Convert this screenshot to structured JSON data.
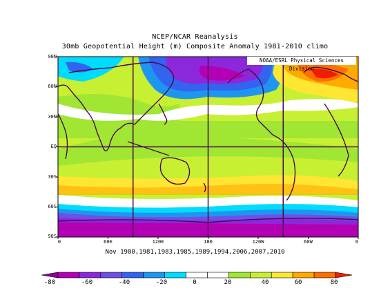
{
  "title_line1": "NCEP/NCAR Reanalysis",
  "title_line2": "30mb Geopotential Height (m) Composite Anomaly 1981-2010 climo",
  "credit": "NOAA/ESRL Physical Sciences Division",
  "subtitle": "Nov 1980,1981,1983,1985,1989,1994,2006,2007,2010",
  "lat_labels": [
    "90N",
    "60N",
    "30N",
    "EQ",
    "30S",
    "60S",
    "90S"
  ],
  "lon_labels": [
    "0",
    "60E",
    "120E",
    "180",
    "120W",
    "60W",
    "0"
  ],
  "colorbar": {
    "tick_labels": [
      "-80",
      "-60",
      "-40",
      "-20",
      "0",
      "20",
      "40",
      "60",
      "80"
    ],
    "colors": [
      "#8c0096",
      "#b400b4",
      "#8c28dc",
      "#6e50e6",
      "#3264f0",
      "#1e96f0",
      "#00dcff",
      "#ffffff",
      "#ffffff",
      "#a0e632",
      "#c8f032",
      "#ffe632",
      "#ffaa00",
      "#ff6e00",
      "#f01e00"
    ]
  },
  "map_data": {
    "variable": "30mb Geopotential Height Composite Anomaly",
    "units": "m",
    "lat_range": [
      -90,
      90
    ],
    "lon_range": [
      0,
      360
    ],
    "grid_lons": [
      0,
      90,
      180,
      270,
      360
    ],
    "grid_lats": [
      0
    ],
    "regions": [
      {
        "label": "deep-negative-anomaly-antarctic",
        "value": -70
      },
      {
        "label": "negative-anomaly-north-pacific",
        "value": -60
      },
      {
        "label": "positive-anomaly-north-atlantic",
        "value": 70
      },
      {
        "label": "weak-positive-anomaly-tropics",
        "value": 15
      }
    ]
  }
}
